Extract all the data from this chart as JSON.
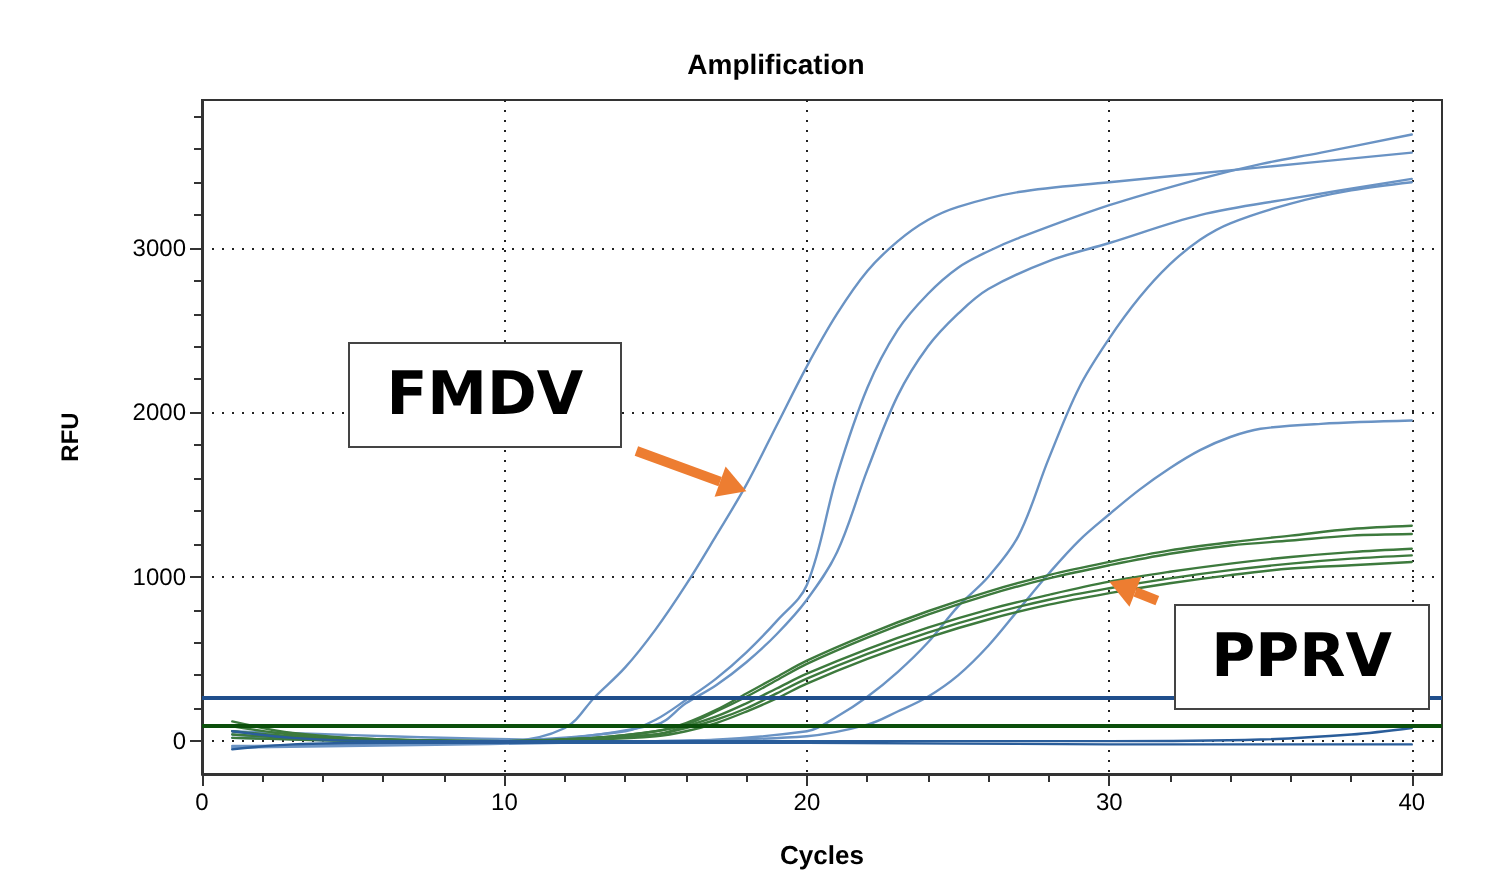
{
  "chart_data": {
    "type": "line",
    "title": "Amplification",
    "xlabel": "Cycles",
    "ylabel": "RFU",
    "xlim": [
      0,
      41
    ],
    "xticks": [
      0,
      10,
      20,
      30,
      40
    ],
    "ylim": [
      -200,
      3900
    ],
    "yticks": [
      0,
      1000,
      2000,
      3000
    ],
    "grid": true,
    "marker": "none",
    "line_style": "solid",
    "series": [
      {
        "color": "#6a93c4",
        "x": [
          1,
          5,
          10,
          12,
          13,
          14,
          15,
          16,
          17,
          18,
          19,
          20,
          21,
          22,
          23,
          24,
          25,
          27,
          30,
          35,
          40
        ],
        "values": [
          40,
          0,
          0,
          80,
          270,
          450,
          680,
          950,
          1250,
          1560,
          1920,
          2280,
          2600,
          2860,
          3040,
          3170,
          3250,
          3340,
          3400,
          3490,
          3580
        ]
      },
      {
        "color": "#6a93c4",
        "x": [
          1,
          10,
          14,
          15,
          16,
          17,
          18,
          19,
          20,
          21,
          22,
          23,
          24,
          25,
          26,
          27,
          30,
          33,
          35,
          37,
          40
        ],
        "values": [
          -30,
          0,
          60,
          130,
          250,
          380,
          540,
          730,
          950,
          1620,
          2150,
          2500,
          2720,
          2880,
          2980,
          3060,
          3260,
          3420,
          3510,
          3580,
          3690
        ]
      },
      {
        "color": "#6a93c4",
        "x": [
          1,
          10,
          15,
          16,
          17,
          18,
          19,
          20,
          21,
          22,
          23,
          24,
          25,
          26,
          28,
          30,
          33,
          36,
          40
        ],
        "values": [
          20,
          0,
          100,
          230,
          340,
          480,
          650,
          860,
          1150,
          1650,
          2100,
          2400,
          2600,
          2750,
          2920,
          3030,
          3200,
          3300,
          3420
        ]
      },
      {
        "color": "#6a93c4",
        "x": [
          1,
          15,
          20,
          21,
          22,
          23,
          24,
          25,
          26,
          27,
          28,
          29,
          30,
          31,
          32,
          33,
          34,
          36,
          38,
          40
        ],
        "values": [
          60,
          0,
          60,
          150,
          270,
          420,
          600,
          820,
          1000,
          1250,
          1720,
          2150,
          2450,
          2700,
          2900,
          3050,
          3150,
          3270,
          3350,
          3400
        ]
      },
      {
        "color": "#6a93c4",
        "x": [
          1,
          15,
          20,
          22,
          23,
          24,
          25,
          26,
          27,
          28,
          29,
          30,
          31,
          32,
          33,
          34,
          35,
          37,
          40
        ],
        "values": [
          -40,
          0,
          30,
          100,
          180,
          270,
          400,
          580,
          800,
          1020,
          1220,
          1380,
          1530,
          1660,
          1770,
          1850,
          1900,
          1930,
          1950
        ]
      },
      {
        "color": "#3d7a3d",
        "x": [
          1,
          3,
          6,
          10,
          13,
          15,
          16,
          17,
          18,
          19,
          20,
          22,
          24,
          26,
          28,
          30,
          32,
          34,
          36,
          38,
          40
        ],
        "values": [
          120,
          50,
          10,
          0,
          20,
          60,
          110,
          190,
          290,
          390,
          490,
          650,
          790,
          910,
          1010,
          1090,
          1160,
          1210,
          1250,
          1290,
          1310
        ]
      },
      {
        "color": "#3d7a3d",
        "x": [
          1,
          3,
          6,
          10,
          13,
          15,
          16,
          17,
          18,
          19,
          20,
          22,
          24,
          26,
          28,
          30,
          32,
          34,
          36,
          38,
          40
        ],
        "values": [
          90,
          40,
          10,
          0,
          20,
          60,
          100,
          180,
          270,
          370,
          470,
          630,
          770,
          890,
          990,
          1070,
          1140,
          1190,
          1220,
          1250,
          1260
        ]
      },
      {
        "color": "#3d7a3d",
        "x": [
          1,
          3,
          6,
          10,
          13,
          15,
          16,
          17,
          18,
          19,
          20,
          22,
          24,
          26,
          28,
          30,
          32,
          34,
          36,
          38,
          40
        ],
        "values": [
          60,
          30,
          10,
          0,
          20,
          40,
          90,
          150,
          230,
          320,
          410,
          560,
          690,
          800,
          890,
          970,
          1030,
          1080,
          1120,
          1150,
          1170
        ]
      },
      {
        "color": "#3d7a3d",
        "x": [
          1,
          3,
          6,
          10,
          13,
          15,
          16,
          17,
          18,
          19,
          20,
          22,
          24,
          26,
          28,
          30,
          32,
          34,
          36,
          38,
          40
        ],
        "values": [
          40,
          20,
          10,
          0,
          20,
          40,
          80,
          130,
          200,
          290,
          380,
          530,
          660,
          770,
          860,
          930,
          990,
          1040,
          1080,
          1110,
          1130
        ]
      },
      {
        "color": "#3d7a3d",
        "x": [
          1,
          3,
          6,
          10,
          13,
          15,
          16,
          17,
          18,
          19,
          20,
          22,
          24,
          26,
          28,
          30,
          32,
          34,
          36,
          38,
          40
        ],
        "values": [
          20,
          10,
          0,
          0,
          10,
          30,
          60,
          110,
          180,
          260,
          350,
          500,
          630,
          740,
          830,
          900,
          960,
          1010,
          1050,
          1070,
          1090
        ]
      },
      {
        "color": "#2a5d9a",
        "x": [
          1,
          3,
          6,
          10,
          20,
          30,
          35,
          38,
          40
        ],
        "values": [
          60,
          20,
          0,
          0,
          0,
          0,
          10,
          40,
          80
        ]
      },
      {
        "color": "#2a5d9a",
        "x": [
          1,
          3,
          6,
          10,
          20,
          30,
          40
        ],
        "values": [
          -50,
          -20,
          -10,
          -10,
          -10,
          -20,
          -20
        ]
      }
    ],
    "ref_lines": [
      {
        "axis": "y",
        "value": 270,
        "color": "#1f4e8c"
      },
      {
        "axis": "y",
        "value": 100,
        "color": "#0b4f0b"
      }
    ],
    "annotations": [
      {
        "text": "FMDV",
        "x": 18,
        "y": 1520
      },
      {
        "text": "PPRV",
        "x": 30,
        "y": 970
      }
    ]
  }
}
